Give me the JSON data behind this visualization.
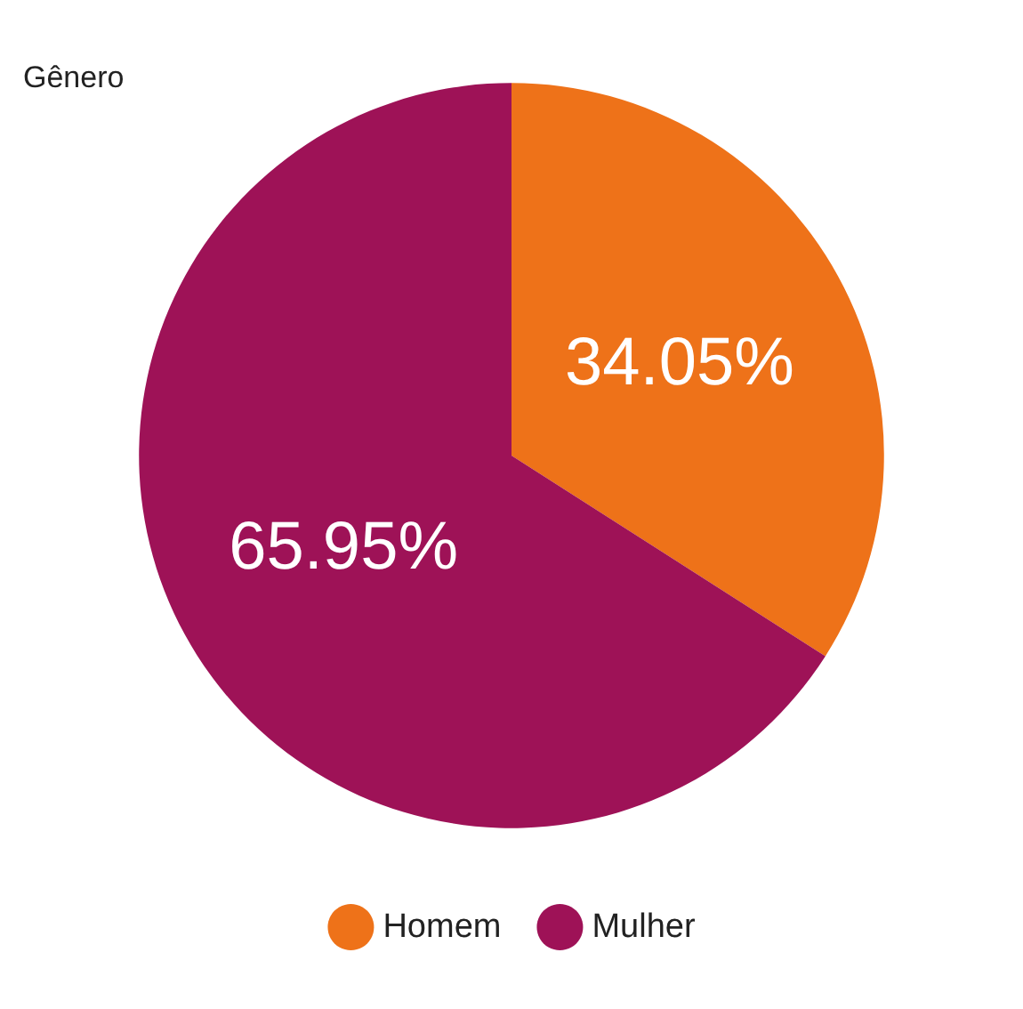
{
  "chart_data": {
    "type": "pie",
    "title": "Gênero",
    "categories": [
      "Homem",
      "Mulher"
    ],
    "values": [
      34.05,
      65.95
    ],
    "colors": [
      "#ee7219",
      "#9e1257"
    ],
    "value_labels": [
      "34.05%",
      "65.95%"
    ],
    "legend": "bottom"
  }
}
